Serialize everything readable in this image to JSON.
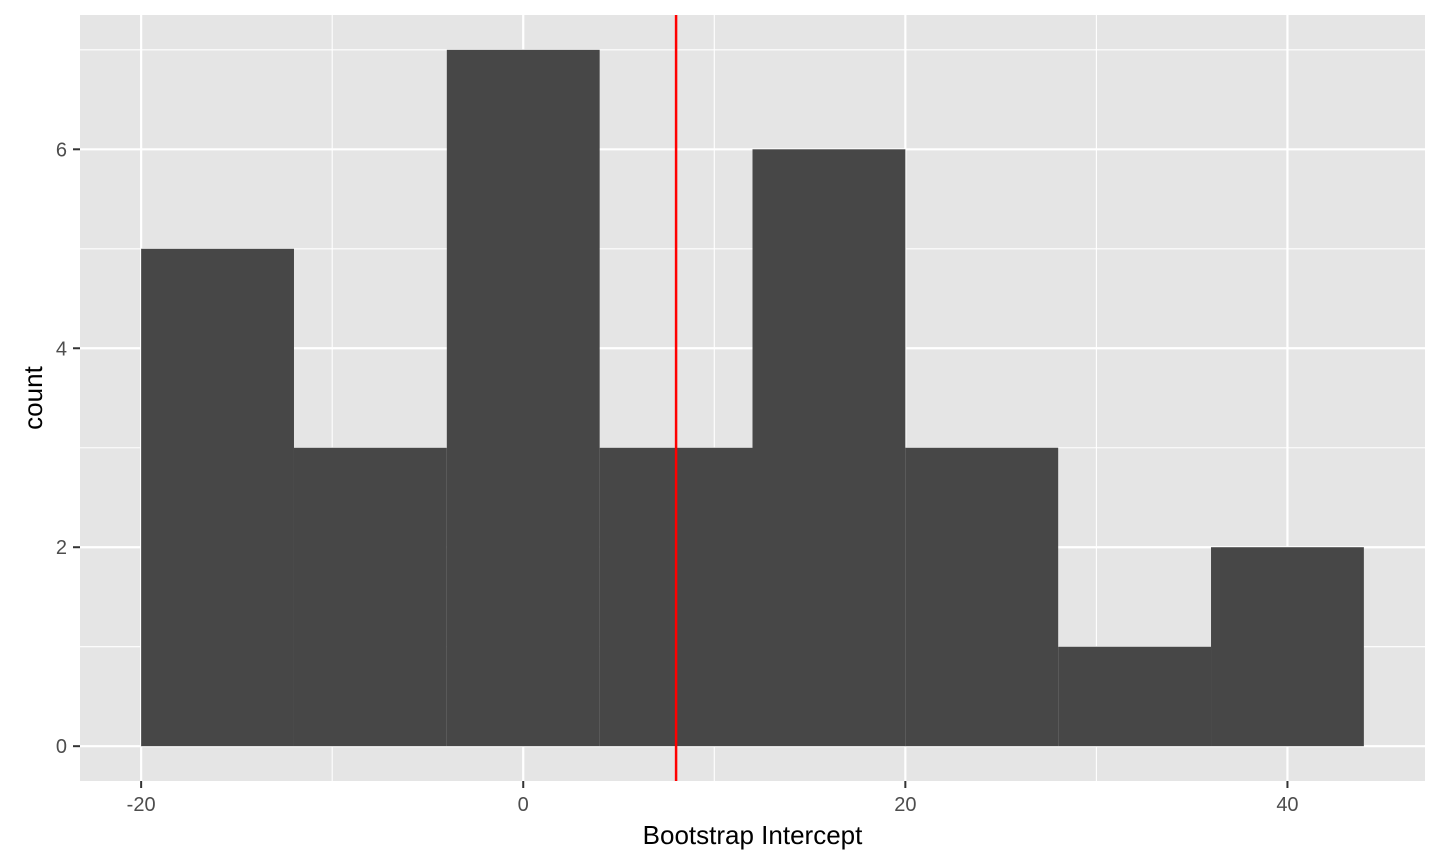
{
  "chart_data": {
    "type": "bar",
    "subtype": "histogram",
    "xlabel": "Bootstrap Intercept",
    "ylabel": "count",
    "bins": [
      {
        "x0": -20,
        "x1": -12,
        "count": 5
      },
      {
        "x0": -12,
        "x1": -4,
        "count": 3
      },
      {
        "x0": -4,
        "x1": 4,
        "count": 7
      },
      {
        "x0": 4,
        "x1": 12,
        "count": 3
      },
      {
        "x0": 12,
        "x1": 20,
        "count": 6
      },
      {
        "x0": 20,
        "x1": 28,
        "count": 3
      },
      {
        "x0": 28,
        "x1": 36,
        "count": 1
      },
      {
        "x0": 36,
        "x1": 44,
        "count": 2
      }
    ],
    "xlim": [
      -23.2,
      47.2
    ],
    "ylim": [
      -0.35,
      7.35
    ],
    "xticks": [
      -20,
      0,
      20,
      40
    ],
    "xtick_labels": [
      "-20",
      "0",
      "20",
      "40"
    ],
    "xminor": [
      -10,
      10,
      30
    ],
    "yticks": [
      0,
      2,
      4,
      6
    ],
    "ytick_labels": [
      "0",
      "2",
      "4",
      "6"
    ],
    "yminor": [
      1,
      3,
      5,
      7
    ],
    "vline": {
      "x": 8,
      "color": "#ff0000"
    },
    "grid": true,
    "legend": "none",
    "colors": {
      "bar_fill": "#474747",
      "panel_background": "#e5e5e5",
      "grid": "#ffffff"
    }
  }
}
